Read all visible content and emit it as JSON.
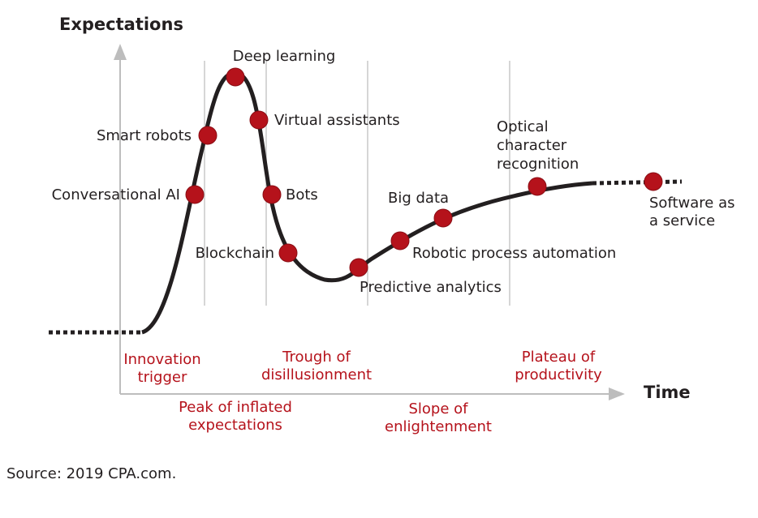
{
  "axes": {
    "y_label": "Expectations",
    "x_label": "Time"
  },
  "points": [
    {
      "label": [
        "Conversational AI"
      ]
    },
    {
      "label": [
        "Smart robots"
      ]
    },
    {
      "label": [
        "Deep learning"
      ]
    },
    {
      "label": [
        "Virtual assistants"
      ]
    },
    {
      "label": [
        "Bots"
      ]
    },
    {
      "label": [
        "Blockchain"
      ]
    },
    {
      "label": [
        "Predictive analytics"
      ]
    },
    {
      "label": [
        "Robotic process automation"
      ]
    },
    {
      "label": [
        "Big data"
      ]
    },
    {
      "label": [
        "Optical",
        "character",
        "recognition"
      ]
    },
    {
      "label": [
        "Software as",
        "a service"
      ]
    }
  ],
  "phases": [
    {
      "label": [
        "Innovation",
        "trigger"
      ]
    },
    {
      "label": [
        "Peak of inflated",
        "expectations"
      ]
    },
    {
      "label": [
        "Trough of",
        "disillusionment"
      ]
    },
    {
      "label": [
        "Slope of",
        "enlightenment"
      ]
    },
    {
      "label": [
        "Plateau of",
        "productivity"
      ]
    }
  ],
  "source": "Source: 2019 CPA.com."
}
